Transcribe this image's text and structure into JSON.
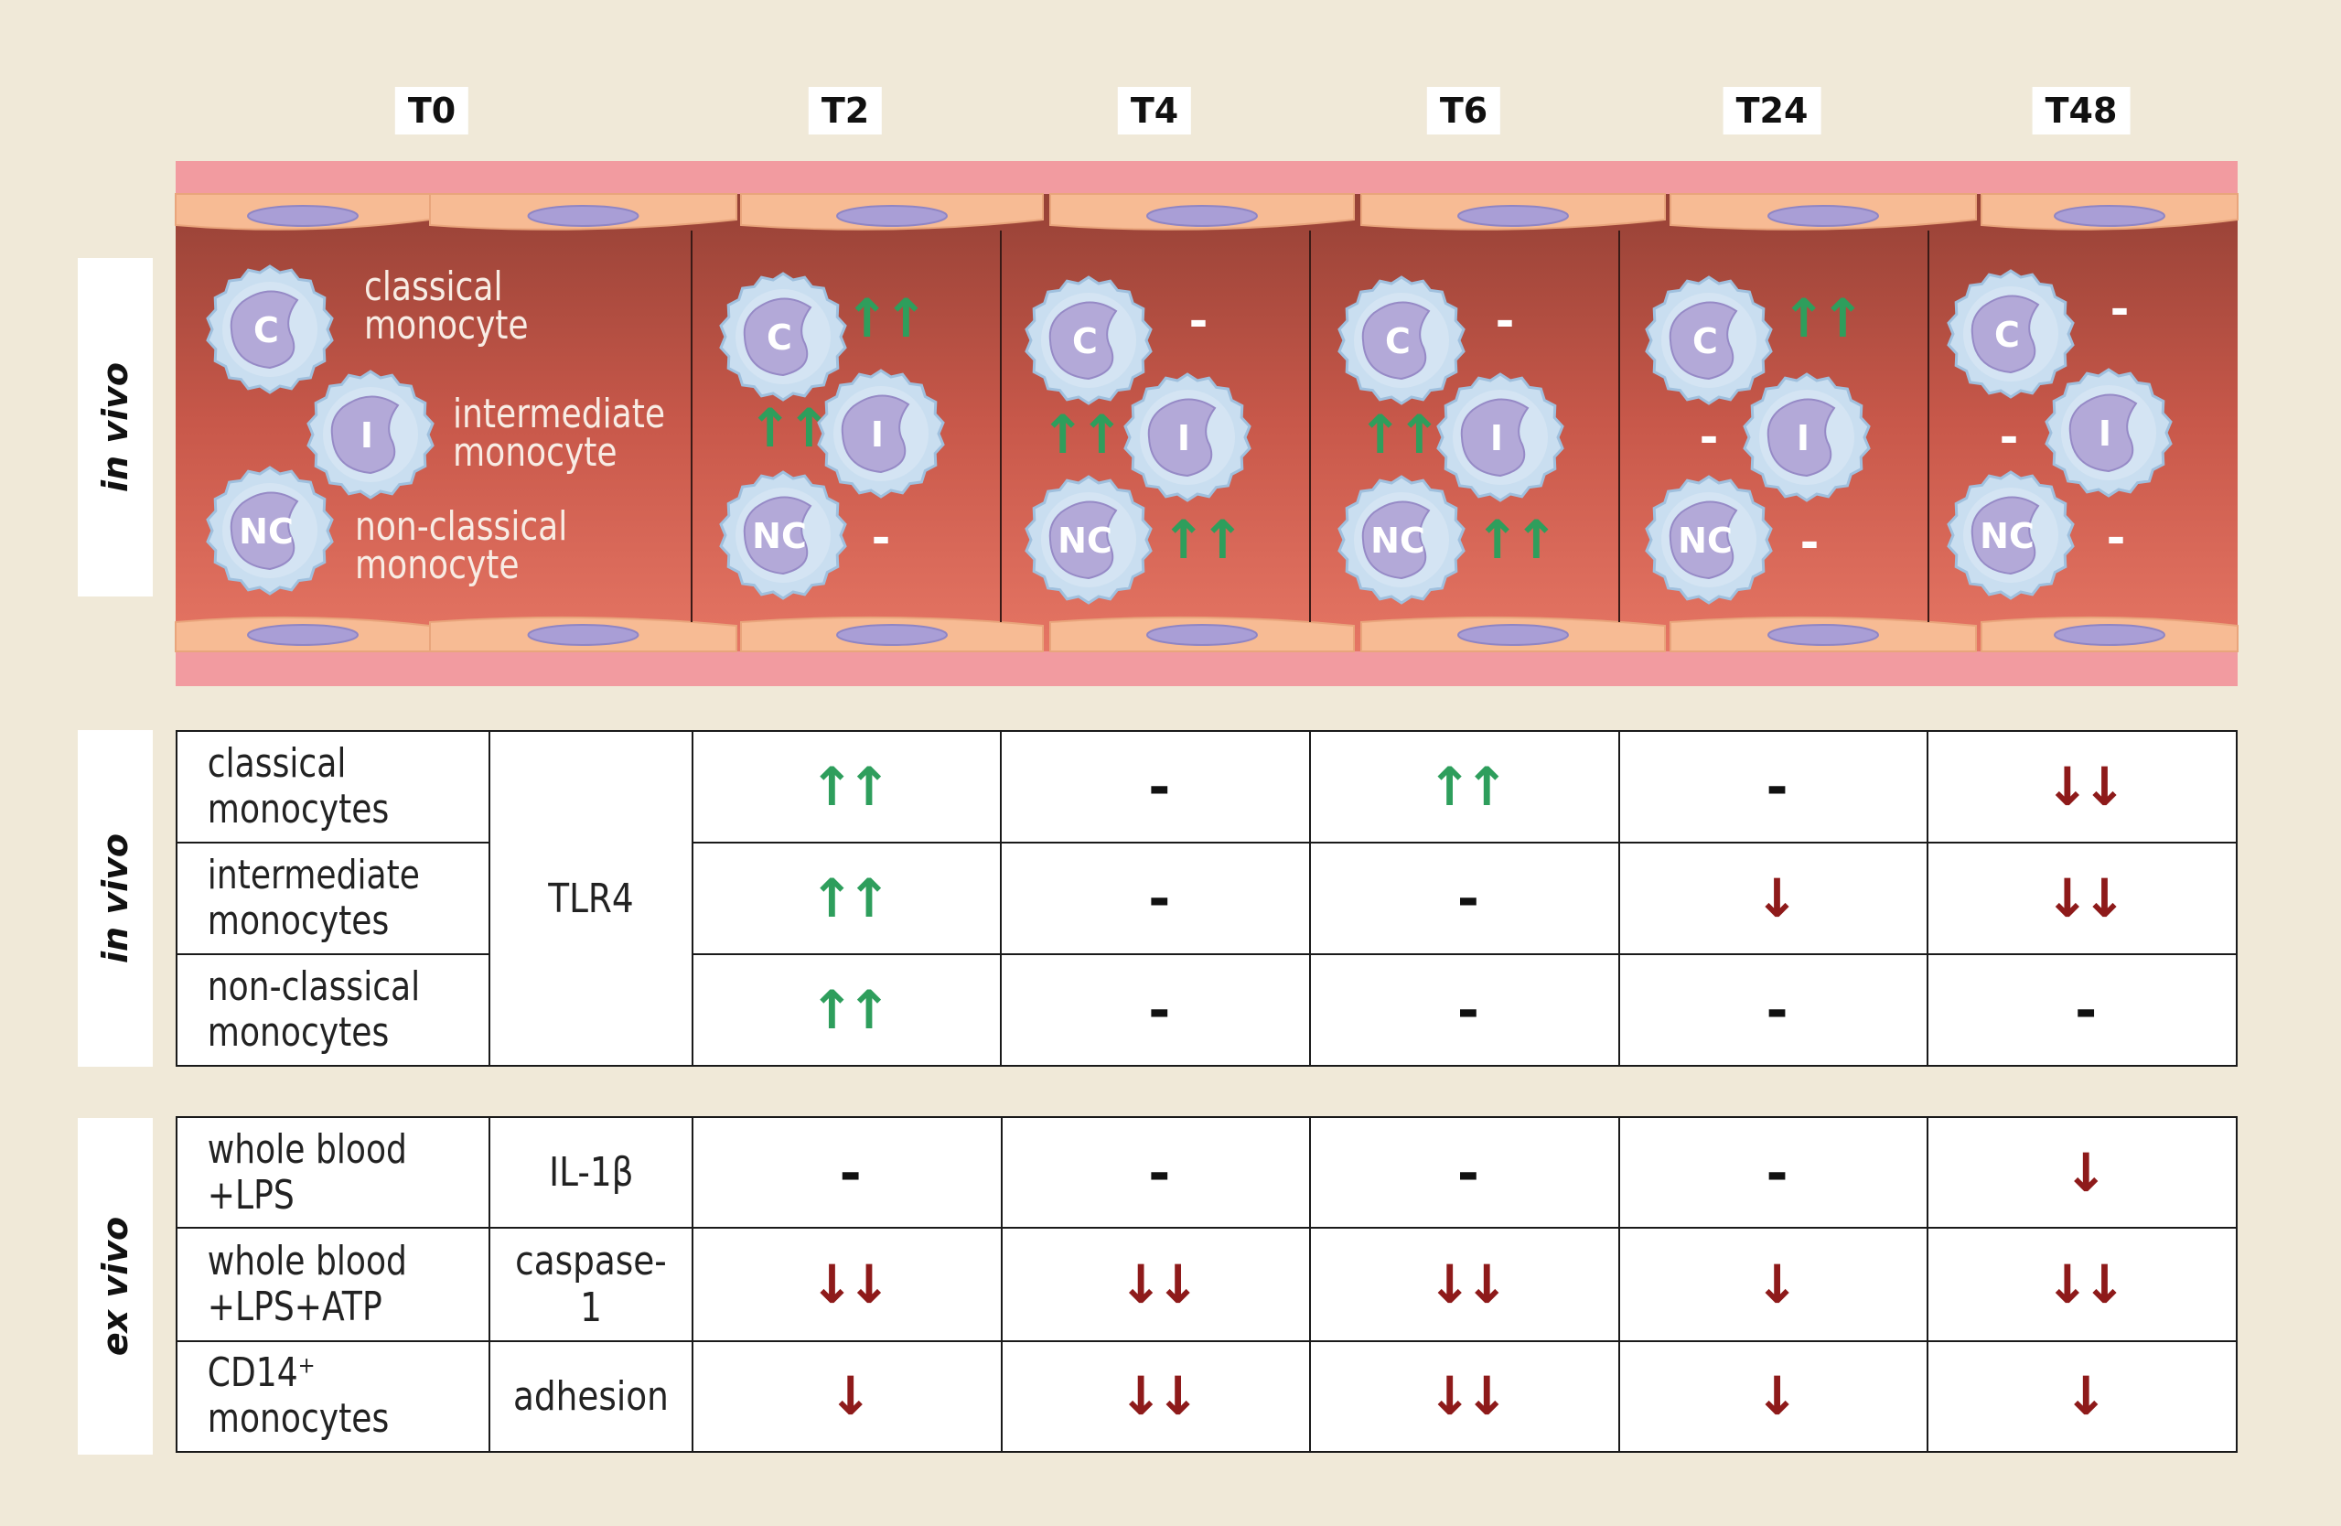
{
  "timepoints": [
    "T0",
    "T2",
    "T4",
    "T6",
    "T24",
    "T48"
  ],
  "side_labels": {
    "vessel": "in vivo",
    "tlr": "in vivo",
    "exvivo": "ex vivo"
  },
  "legend": {
    "classical": [
      "classical",
      "monocyte"
    ],
    "intermediate": [
      "intermediate",
      "monocyte"
    ],
    "nonclassical": [
      "non-classical",
      "monocyte"
    ]
  },
  "cell_letters": {
    "classical": "C",
    "intermediate": "I",
    "nonclassical": "NC"
  },
  "vessel_markers": {
    "T2": {
      "C": "↑↑",
      "I": "↑↑",
      "NC": "-"
    },
    "T4": {
      "C": "-",
      "I": "↑↑",
      "NC": "↑↑"
    },
    "T6": {
      "C": "-",
      "I": "↑↑",
      "NC": "↑↑"
    },
    "T24": {
      "C": "↑↑",
      "I": "-",
      "NC": "-"
    },
    "T48": {
      "C": "-",
      "I": "-",
      "NC": "-"
    }
  },
  "tlr_table": {
    "marker": "TLR4",
    "rows": [
      {
        "label": [
          "classical",
          "monocytes"
        ],
        "values": [
          "↑↑",
          "-",
          "↑↑",
          "-",
          "↓↓"
        ]
      },
      {
        "label": [
          "intermediate",
          "monocytes"
        ],
        "values": [
          "↑↑",
          "-",
          "-",
          "↓",
          "↓↓"
        ]
      },
      {
        "label": [
          "non-classical",
          "monocytes"
        ],
        "values": [
          "↑↑",
          "-",
          "-",
          "-",
          "-"
        ]
      }
    ]
  },
  "exvivo_table": {
    "rows": [
      {
        "label": [
          "whole blood",
          "+LPS"
        ],
        "marker": "IL-1β",
        "values": [
          "-",
          "-",
          "-",
          "-",
          "↓"
        ]
      },
      {
        "label": [
          "whole blood",
          "+LPS+ATP"
        ],
        "marker": "caspase-1",
        "values": [
          "↓↓",
          "↓↓",
          "↓↓",
          "↓",
          "↓↓"
        ]
      },
      {
        "label": [
          "CD14⁺",
          "monocytes"
        ],
        "marker": "adhesion",
        "values": [
          "↓",
          "↓↓",
          "↓↓",
          "↓",
          "↓"
        ]
      }
    ]
  },
  "colors": {
    "up": "#2e9e5c",
    "down": "#8e1a1a",
    "neutral": "#111111",
    "cell_fill": "#c9def0",
    "nucleus": "#b3a9d8",
    "vessel": "#a84a3e"
  }
}
